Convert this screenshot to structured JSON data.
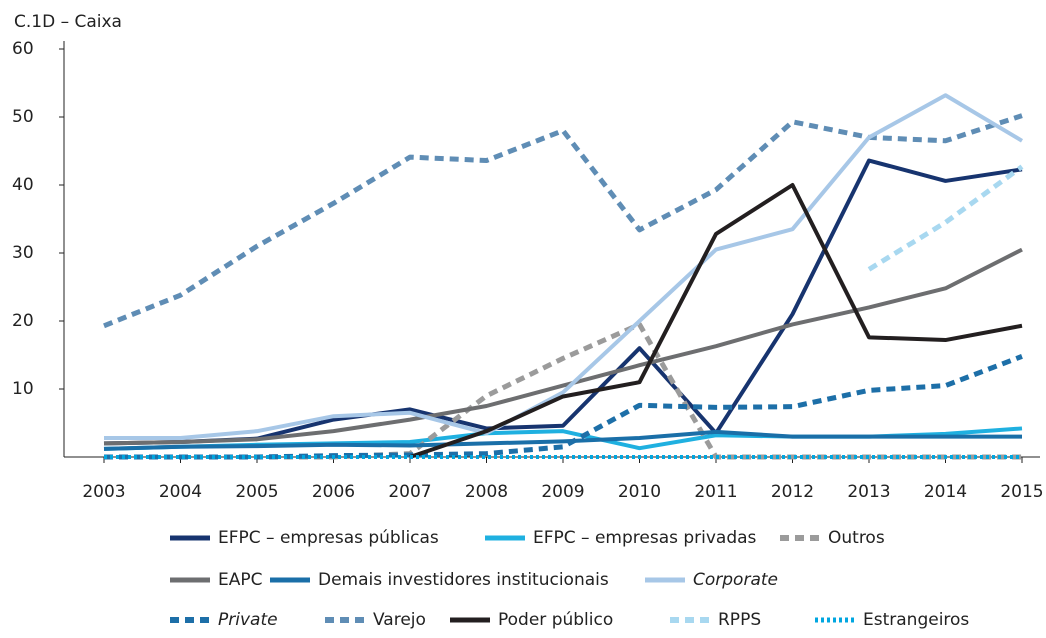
{
  "chart_data": {
    "type": "line",
    "title": "C.1D – Caixa",
    "x": [
      2003,
      2004,
      2005,
      2006,
      2007,
      2008,
      2009,
      2010,
      2011,
      2012,
      2013,
      2014,
      2015
    ],
    "xlim": [
      2003,
      2015
    ],
    "ylim": [
      0,
      60
    ],
    "yticks": [
      10,
      20,
      30,
      40,
      50,
      60
    ],
    "grid": false,
    "series": [
      {
        "name": "EFPC – empresas públicas",
        "color": "#17346f",
        "dash": "solid",
        "values": [
          2,
          2.2,
          2.7,
          5.5,
          7,
          4.2,
          4.6,
          16,
          3.5,
          21,
          43.6,
          40.6,
          42.3
        ]
      },
      {
        "name": "EFPC – empresas privadas",
        "color": "#1fb0e0",
        "dash": "solid",
        "values": [
          1.2,
          1.5,
          1.8,
          2,
          2.2,
          3.5,
          3.8,
          1.3,
          3.2,
          3,
          3,
          3.4,
          4.2
        ]
      },
      {
        "name": "Outros",
        "color": "#9b9b9b",
        "dash": "dashed",
        "values": [
          0,
          0,
          0,
          0,
          0.5,
          9,
          14.5,
          19.5,
          0,
          0,
          0,
          0,
          0
        ]
      },
      {
        "name": "EAPC",
        "color": "#6d6e70",
        "dash": "solid",
        "values": [
          2,
          2.2,
          2.6,
          3.8,
          5.5,
          7.5,
          10.5,
          13.5,
          16.3,
          19.5,
          22,
          24.8,
          30.5
        ]
      },
      {
        "name": "Demais investidores institucionais",
        "color": "#1a6fa8",
        "dash": "solid",
        "values": [
          1.2,
          1.5,
          1.6,
          1.8,
          1.7,
          2,
          2.3,
          2.8,
          3.7,
          3,
          3,
          3,
          3
        ]
      },
      {
        "name": "Corporate",
        "color": "#a7c7e7",
        "dash": "solid",
        "values": [
          2.8,
          2.8,
          3.8,
          6,
          6.5,
          3.5,
          9.5,
          20,
          30.5,
          33.5,
          47,
          53.2,
          46.5
        ]
      },
      {
        "name": "Private",
        "color": "#1d6fa8",
        "dash": "dashed",
        "values": [
          0,
          0,
          0,
          0.2,
          0.3,
          0.5,
          1.5,
          7.6,
          7.3,
          7.4,
          9.8,
          10.5,
          14.8
        ]
      },
      {
        "name": "Varejo",
        "color": "#5f8db5",
        "dash": "dashed",
        "values": [
          19.3,
          23.8,
          31,
          37.3,
          44.1,
          43.6,
          48,
          33.4,
          39.3,
          49.3,
          47,
          46.5,
          50.2
        ]
      },
      {
        "name": "Poder público",
        "color": "#231f20",
        "dash": "solid",
        "values": [
          null,
          null,
          null,
          null,
          0,
          3.8,
          8.9,
          11,
          32.8,
          40,
          17.6,
          17.2,
          19.3
        ]
      },
      {
        "name": "RPPS",
        "color": "#a8d8f0",
        "dash": "dashed",
        "values": [
          null,
          null,
          null,
          null,
          null,
          null,
          null,
          null,
          null,
          null,
          27.6,
          34.5,
          42.7
        ]
      },
      {
        "name": "Estrangeiros",
        "color": "#00a6e0",
        "dash": "dotted",
        "values": [
          0,
          0,
          0,
          0,
          0,
          0,
          0,
          0,
          0,
          0,
          0,
          0,
          0
        ]
      }
    ]
  }
}
